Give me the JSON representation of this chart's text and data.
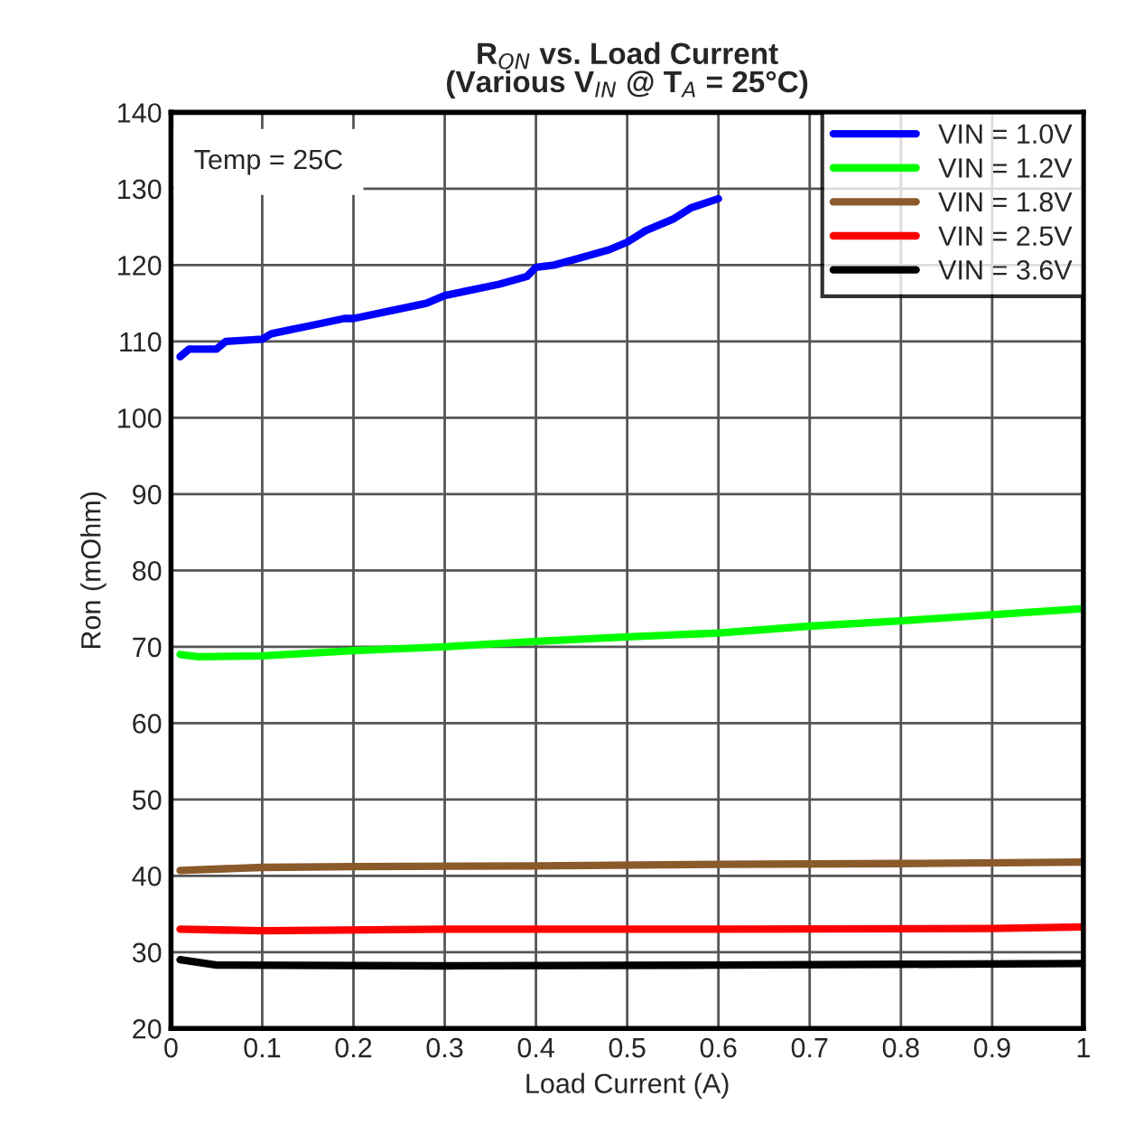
{
  "chart_data": {
    "type": "line",
    "title": "R$_{ON}$ vs. Load Current\n(Various V$_{IN}$ @ T$_{A}$ = 25°C)",
    "xlabel": "Load Current (A)",
    "ylabel": "Ron (mOhm)",
    "annotations": [
      "Temp = 25C"
    ],
    "xlim": [
      0,
      1
    ],
    "xticks": [
      0,
      0.1,
      0.2,
      0.3,
      0.4,
      0.5,
      0.6,
      0.7,
      0.8,
      0.9,
      1
    ],
    "ylim": [
      20,
      140
    ],
    "yticks": [
      20,
      30,
      40,
      50,
      60,
      70,
      80,
      90,
      100,
      110,
      120,
      130,
      140
    ],
    "grid": true,
    "legend": "top right",
    "line_style": "solid",
    "marker": "none",
    "series": [
      {
        "name": "VIN = 1.0V",
        "color": "#0000ff",
        "x": [
          0.01,
          0.02,
          0.05,
          0.06,
          0.1,
          0.11,
          0.13,
          0.15,
          0.19,
          0.2,
          0.24,
          0.28,
          0.3,
          0.32,
          0.36,
          0.39,
          0.4,
          0.42,
          0.45,
          0.48,
          0.5,
          0.52,
          0.55,
          0.57,
          0.6
        ],
        "values": [
          108,
          109,
          109,
          110,
          110.3,
          111,
          111.5,
          112,
          113,
          113,
          114,
          115,
          116,
          116.5,
          117.5,
          118.5,
          119.7,
          120,
          121,
          122,
          123,
          124.5,
          126,
          127.5,
          128.7
        ]
      },
      {
        "name": "VIN = 1.2V",
        "color": "#00ff00",
        "x": [
          0.01,
          0.03,
          0.1,
          0.2,
          0.3,
          0.4,
          0.5,
          0.6,
          0.7,
          0.8,
          0.9,
          1.0
        ],
        "values": [
          69,
          68.7,
          68.8,
          69.5,
          70,
          70.7,
          71.3,
          71.8,
          72.7,
          73.4,
          74.2,
          75
        ]
      },
      {
        "name": "VIN = 1.8V",
        "color": "#8b5a2b",
        "x": [
          0.01,
          0.1,
          0.2,
          0.4,
          0.6,
          0.8,
          1.0
        ],
        "values": [
          40.7,
          41.1,
          41.2,
          41.3,
          41.5,
          41.6,
          41.8
        ]
      },
      {
        "name": "VIN = 2.5V",
        "color": "#ff0000",
        "x": [
          0.01,
          0.1,
          0.3,
          0.6,
          0.9,
          1.0
        ],
        "values": [
          33,
          32.8,
          33,
          33,
          33.1,
          33.3
        ]
      },
      {
        "name": "VIN = 3.6V",
        "color": "#000000",
        "x": [
          0.01,
          0.05,
          0.3,
          0.6,
          0.8,
          1.0
        ],
        "values": [
          29,
          28.3,
          28.2,
          28.3,
          28.4,
          28.5
        ]
      }
    ]
  }
}
